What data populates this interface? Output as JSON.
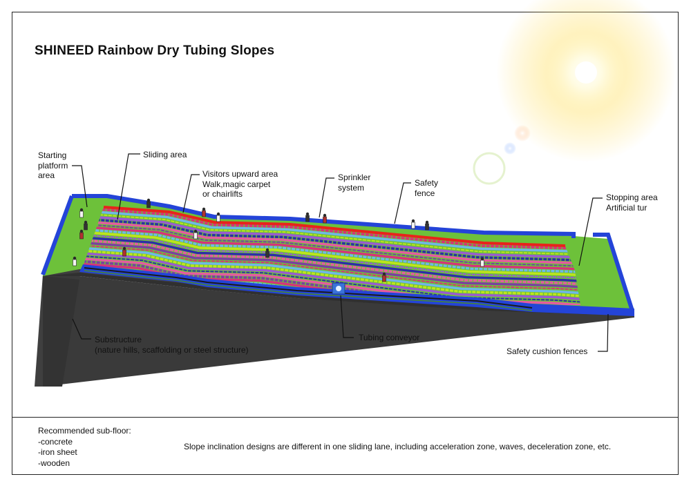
{
  "title": "SHINEED Rainbow Dry Tubing Slopes",
  "colors": {
    "grass": "#6ec23a",
    "fence": "#1f3fd6",
    "substructure": "#3d3d3d",
    "red_edge": "#e8231b",
    "stripes": [
      "#7a3fa3",
      "#d7327a",
      "#6fb7e8",
      "#bfe51c",
      "#9b5ad1",
      "#2d2da8",
      "#e65aa0"
    ]
  },
  "labels": {
    "starting_platform": [
      "Starting",
      "platform",
      "area"
    ],
    "sliding_area": "Sliding area",
    "visitors_upward": [
      "Visitors upward area",
      "Walk,magic carpet",
      "or chairlifts"
    ],
    "sprinkler": [
      "Sprinkler",
      "system"
    ],
    "safety_fence": [
      "Safety",
      "fence"
    ],
    "stopping_area": [
      "Stopping area",
      "Artificial tur"
    ],
    "substructure": [
      "Substructure",
      "(nature hills, scaffolding or steel structure)"
    ],
    "tubing_conveyor": "Tubing conveyor",
    "safety_cushion": "Safety cushion fences"
  },
  "footer": {
    "subfloor_title": "Recommended sub-floor:",
    "subfloor_items": [
      "-concrete",
      "-iron sheet",
      "-wooden"
    ],
    "note": "Slope inclination designs are different in one sliding lane, including acceleration zone, waves, deceleration zone, etc."
  },
  "icons": {
    "sun": "sun-glare-icon",
    "conveyor": "conveyor-logo-icon",
    "people": "visitor-figure-icon"
  }
}
